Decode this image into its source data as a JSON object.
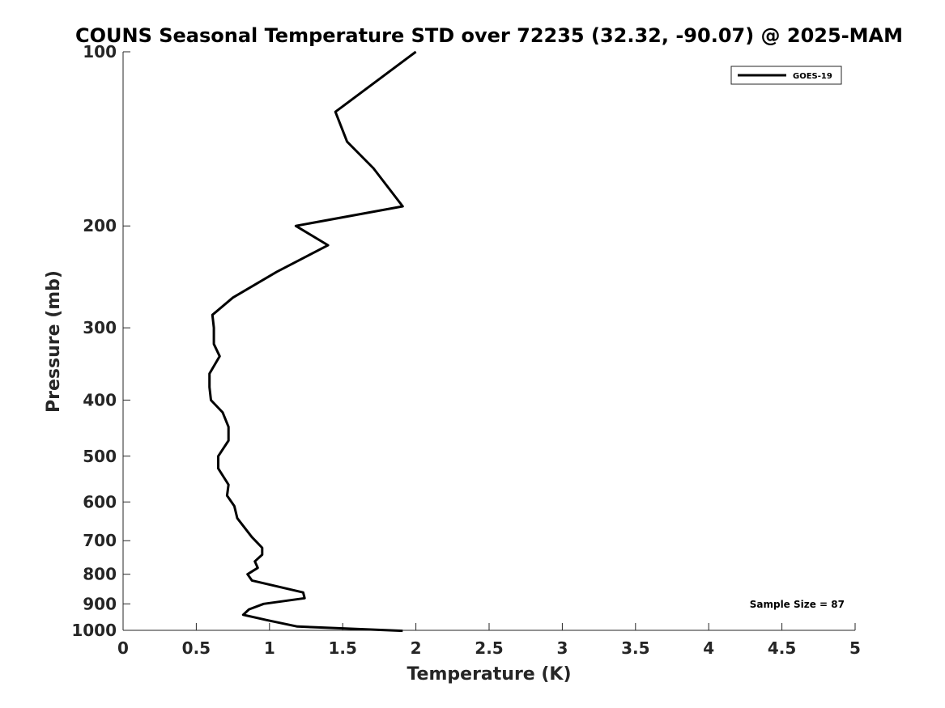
{
  "chart_data": {
    "type": "line",
    "title": "COUNS Seasonal Temperature STD over 72235 (32.32, -90.07) @ 2025-MAM",
    "xlabel": "Temperature (K)",
    "ylabel": "Pressure (mb)",
    "xlim": [
      0,
      5
    ],
    "ylim": [
      100,
      1000
    ],
    "yscale": "log",
    "xticks": [
      0,
      0.5,
      1,
      1.5,
      2,
      2.5,
      3,
      3.5,
      4,
      4.5,
      5
    ],
    "xtick_labels": [
      "0",
      "0.5",
      "1",
      "1.5",
      "2",
      "2.5",
      "3",
      "3.5",
      "4",
      "4.5",
      "5"
    ],
    "yticks": [
      100,
      200,
      300,
      400,
      500,
      600,
      700,
      800,
      900,
      1000
    ],
    "ytick_labels": [
      "100",
      "200",
      "300",
      "400",
      "500",
      "600",
      "700",
      "800",
      "900",
      "1000"
    ],
    "legend_position": "top-right",
    "annotation": "Sample Size = 87",
    "series": [
      {
        "name": "GOES-19",
        "color": "#000000",
        "x": [
          2.0,
          1.45,
          1.53,
          1.71,
          1.91,
          1.18,
          1.4,
          1.05,
          0.75,
          0.61,
          0.62,
          0.62,
          0.66,
          0.59,
          0.59,
          0.6,
          0.68,
          0.72,
          0.72,
          0.65,
          0.65,
          0.72,
          0.71,
          0.76,
          0.78,
          0.88,
          0.95,
          0.95,
          0.9,
          0.92,
          0.85,
          0.88,
          1.23,
          1.24,
          0.96,
          0.86,
          0.82,
          0.98,
          1.19,
          1.91
        ],
        "y": [
          100,
          127,
          143,
          159,
          185,
          200,
          216,
          240,
          266,
          285,
          300,
          320,
          336,
          360,
          380,
          400,
          420,
          445,
          470,
          500,
          525,
          560,
          585,
          610,
          640,
          690,
          720,
          740,
          760,
          780,
          800,
          820,
          860,
          880,
          900,
          920,
          940,
          960,
          985,
          1002
        ]
      }
    ]
  }
}
